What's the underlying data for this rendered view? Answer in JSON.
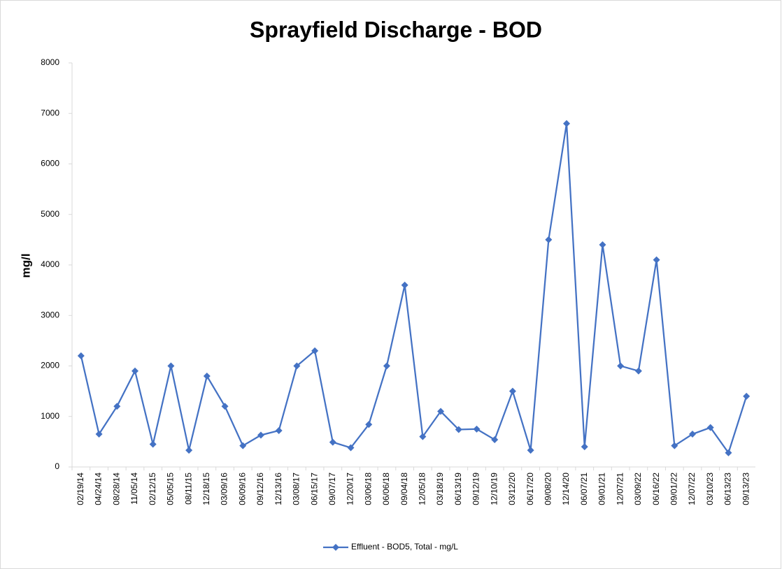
{
  "chart_data": {
    "type": "line",
    "title": "Sprayfield Discharge - BOD",
    "y_label": "mg/l",
    "categories": [
      "02/19/14",
      "04/24/14",
      "08/28/14",
      "11/05/14",
      "02/12/15",
      "05/05/15",
      "08/11/15",
      "12/18/15",
      "03/09/16",
      "06/09/16",
      "09/12/16",
      "12/13/16",
      "03/08/17",
      "06/15/17",
      "09/07/17",
      "12/20/17",
      "03/06/18",
      "06/06/18",
      "09/04/18",
      "12/05/18",
      "03/18/19",
      "06/13/19",
      "09/12/19",
      "12/10/19",
      "03/12/20",
      "06/17/20",
      "09/08/20",
      "12/14/20",
      "06/07/21",
      "09/01/21",
      "12/07/21",
      "03/09/22",
      "06/16/22",
      "09/01/22",
      "12/07/22",
      "03/10/23",
      "06/13/23",
      "09/13/23"
    ],
    "series": [
      {
        "name": "Effluent - BOD5, Total - mg/L",
        "color": "#4472c4",
        "values": [
          2200,
          650,
          1200,
          1900,
          450,
          2000,
          330,
          1800,
          1200,
          420,
          630,
          720,
          2000,
          2300,
          490,
          380,
          840,
          2000,
          3600,
          600,
          1100,
          740,
          750,
          540,
          1500,
          330,
          4500,
          6800,
          400,
          4400,
          2000,
          1900,
          4100,
          420,
          650,
          780,
          280,
          1400
        ]
      }
    ],
    "ylim": [
      0,
      8000
    ],
    "yticks": [
      0,
      1000,
      2000,
      3000,
      4000,
      5000,
      6000,
      7000,
      8000
    ],
    "legend": "bottom"
  }
}
